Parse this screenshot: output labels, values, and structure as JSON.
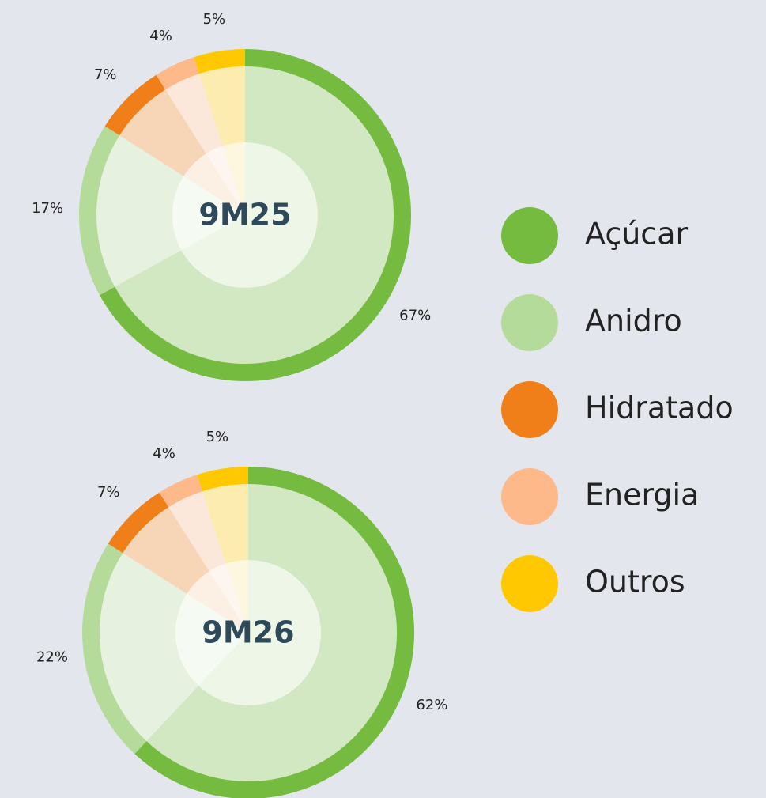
{
  "chart_data": {
    "type": "pie",
    "categories": [
      "Açúcar",
      "Anidro",
      "Hidratado",
      "Energia",
      "Outros"
    ],
    "colors": [
      "#74bb3f",
      "#b5db9a",
      "#f07f1a",
      "#fdb98a",
      "#ffc800"
    ],
    "series": [
      {
        "name": "9M25",
        "values": [
          67,
          17,
          7,
          4,
          5
        ],
        "value_labels": [
          "67%",
          "17%",
          "7%",
          "4%",
          "5%"
        ]
      },
      {
        "name": "9M26",
        "values": [
          62,
          22,
          7,
          4,
          5
        ],
        "value_labels": [
          "62%",
          "22%",
          "7%",
          "4%",
          "5%"
        ]
      }
    ]
  }
}
